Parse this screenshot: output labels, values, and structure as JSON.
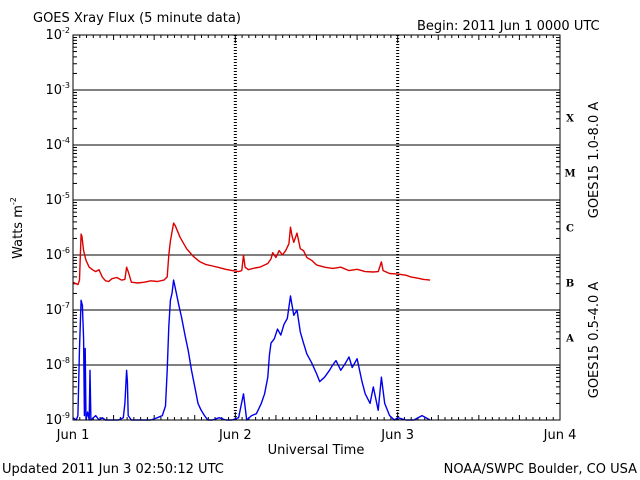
{
  "chart_data": {
    "type": "line",
    "title": "GOES Xray Flux (5 minute data)",
    "begin_label": "Begin:  2011 Jun 1 0000 UTC",
    "xlabel": "Universal Time",
    "ylabel": "Watts m",
    "ylabel_exponent": "-2",
    "y_scale": "log",
    "ylim": [
      1e-09,
      0.01
    ],
    "y_tick_base": "10",
    "y_tick_exponents": [
      "-2",
      "-3",
      "-4",
      "-5",
      "-6",
      "-7",
      "-8",
      "-9"
    ],
    "x_unit": "days since Jun 1 0000 UTC",
    "xlim": [
      0,
      3
    ],
    "x_tick_labels": [
      "Jun 1",
      "Jun 2",
      "Jun 3",
      "Jun 4"
    ],
    "flare_classes": [
      "X",
      "M",
      "C",
      "B",
      "A"
    ],
    "grid": true,
    "series": [
      {
        "name": "GOES15 1.0-8.0 A",
        "color": "#dd0000",
        "points": [
          [
            0.0,
            3.2e-07
          ],
          [
            0.02,
            3e-07
          ],
          [
            0.03,
            2.9e-07
          ],
          [
            0.04,
            3.5e-07
          ],
          [
            0.05,
            2.4e-06
          ],
          [
            0.055,
            2.2e-06
          ],
          [
            0.065,
            1.2e-06
          ],
          [
            0.08,
            8e-07
          ],
          [
            0.1,
            6e-07
          ],
          [
            0.12,
            5.4e-07
          ],
          [
            0.14,
            5e-07
          ],
          [
            0.16,
            5.4e-07
          ],
          [
            0.18,
            4e-07
          ],
          [
            0.2,
            3.4e-07
          ],
          [
            0.22,
            3.3e-07
          ],
          [
            0.24,
            3.7e-07
          ],
          [
            0.27,
            3.9e-07
          ],
          [
            0.3,
            3.5e-07
          ],
          [
            0.32,
            3.6e-07
          ],
          [
            0.33,
            6e-07
          ],
          [
            0.34,
            5e-07
          ],
          [
            0.36,
            3.2e-07
          ],
          [
            0.4,
            3.1e-07
          ],
          [
            0.44,
            3.2e-07
          ],
          [
            0.48,
            3.4e-07
          ],
          [
            0.52,
            3.3e-07
          ],
          [
            0.56,
            3.5e-07
          ],
          [
            0.58,
            4e-07
          ],
          [
            0.59,
            1e-06
          ],
          [
            0.6,
            1.8e-06
          ],
          [
            0.62,
            3.8e-06
          ],
          [
            0.63,
            3.4e-06
          ],
          [
            0.66,
            2.1e-06
          ],
          [
            0.7,
            1.3e-06
          ],
          [
            0.74,
            9.5e-07
          ],
          [
            0.78,
            7.6e-07
          ],
          [
            0.82,
            6.7e-07
          ],
          [
            0.86,
            6.3e-07
          ],
          [
            0.9,
            5.9e-07
          ],
          [
            0.94,
            5.5e-07
          ],
          [
            0.98,
            5.2e-07
          ],
          [
            1.02,
            5e-07
          ],
          [
            1.04,
            5.2e-07
          ],
          [
            1.05,
            1e-06
          ],
          [
            1.06,
            6e-07
          ],
          [
            1.08,
            5.4e-07
          ],
          [
            1.12,
            5.8e-07
          ],
          [
            1.15,
            6e-07
          ],
          [
            1.2,
            7e-07
          ],
          [
            1.22,
            8.5e-07
          ],
          [
            1.23,
            1.1e-06
          ],
          [
            1.25,
            9e-07
          ],
          [
            1.27,
            1.2e-06
          ],
          [
            1.29,
            1e-06
          ],
          [
            1.31,
            1.2e-06
          ],
          [
            1.33,
            1.6e-06
          ],
          [
            1.34,
            3.2e-06
          ],
          [
            1.35,
            2.2e-06
          ],
          [
            1.36,
            1.7e-06
          ],
          [
            1.38,
            2.5e-06
          ],
          [
            1.4,
            1.3e-06
          ],
          [
            1.42,
            1.2e-06
          ],
          [
            1.44,
            9e-07
          ],
          [
            1.47,
            8e-07
          ],
          [
            1.5,
            6.6e-07
          ],
          [
            1.55,
            6e-07
          ],
          [
            1.6,
            5.7e-07
          ],
          [
            1.65,
            6e-07
          ],
          [
            1.7,
            5.2e-07
          ],
          [
            1.75,
            5.5e-07
          ],
          [
            1.8,
            5e-07
          ],
          [
            1.85,
            4.9e-07
          ],
          [
            1.88,
            5e-07
          ],
          [
            1.9,
            7.5e-07
          ],
          [
            1.91,
            5.2e-07
          ],
          [
            1.95,
            4.6e-07
          ],
          [
            2.0,
            4.5e-07
          ],
          [
            2.05,
            4.3e-07
          ],
          [
            2.08,
            4e-07
          ],
          [
            2.12,
            3.8e-07
          ],
          [
            2.16,
            3.6e-07
          ],
          [
            2.2,
            3.5e-07
          ]
        ]
      },
      {
        "name": "GOES15 0.5-4.0 A",
        "color": "#0000ee",
        "points": [
          [
            0.0,
            1.1e-09
          ],
          [
            0.02,
            1e-09
          ],
          [
            0.03,
            1.2e-09
          ],
          [
            0.04,
            2e-08
          ],
          [
            0.05,
            1.5e-07
          ],
          [
            0.058,
            1.2e-07
          ],
          [
            0.065,
            3e-08
          ],
          [
            0.07,
            1.2e-09
          ],
          [
            0.075,
            2e-08
          ],
          [
            0.08,
            1e-09
          ],
          [
            0.09,
            1.4e-09
          ],
          [
            0.1,
            1e-09
          ],
          [
            0.105,
            8e-09
          ],
          [
            0.11,
            1e-09
          ],
          [
            0.14,
            1.2e-09
          ],
          [
            0.16,
            1e-09
          ],
          [
            0.18,
            1.1e-09
          ],
          [
            0.2,
            1e-09
          ],
          [
            0.24,
            1e-09
          ],
          [
            0.28,
            1e-09
          ],
          [
            0.31,
            1.1e-09
          ],
          [
            0.32,
            2e-09
          ],
          [
            0.33,
            8e-09
          ],
          [
            0.335,
            5e-09
          ],
          [
            0.34,
            1.2e-09
          ],
          [
            0.36,
            1e-09
          ],
          [
            0.4,
            1e-09
          ],
          [
            0.44,
            1e-09
          ],
          [
            0.48,
            1e-09
          ],
          [
            0.52,
            1.1e-09
          ],
          [
            0.55,
            1.2e-09
          ],
          [
            0.57,
            1.8e-09
          ],
          [
            0.58,
            8e-09
          ],
          [
            0.59,
            5e-08
          ],
          [
            0.6,
            1.5e-07
          ],
          [
            0.61,
            2e-07
          ],
          [
            0.62,
            3.5e-07
          ],
          [
            0.63,
            2.5e-07
          ],
          [
            0.65,
            1.3e-07
          ],
          [
            0.67,
            7e-08
          ],
          [
            0.69,
            3.5e-08
          ],
          [
            0.71,
            1.8e-08
          ],
          [
            0.73,
            8e-09
          ],
          [
            0.75,
            4e-09
          ],
          [
            0.77,
            2e-09
          ],
          [
            0.79,
            1.5e-09
          ],
          [
            0.81,
            1.2e-09
          ],
          [
            0.83,
            1e-09
          ],
          [
            0.86,
            1e-09
          ],
          [
            0.9,
            1.1e-09
          ],
          [
            0.94,
            1e-09
          ],
          [
            0.98,
            1e-09
          ],
          [
            1.02,
            1.1e-09
          ],
          [
            1.05,
            3e-09
          ],
          [
            1.07,
            1e-09
          ],
          [
            1.1,
            1.2e-09
          ],
          [
            1.13,
            1.3e-09
          ],
          [
            1.16,
            2e-09
          ],
          [
            1.18,
            3e-09
          ],
          [
            1.2,
            6e-09
          ],
          [
            1.21,
            1.5e-08
          ],
          [
            1.22,
            2.5e-08
          ],
          [
            1.24,
            3e-08
          ],
          [
            1.26,
            4.5e-08
          ],
          [
            1.28,
            3.5e-08
          ],
          [
            1.3,
            5.5e-08
          ],
          [
            1.32,
            7e-08
          ],
          [
            1.34,
            1.8e-07
          ],
          [
            1.35,
            1.2e-07
          ],
          [
            1.36,
            8e-08
          ],
          [
            1.38,
            1e-07
          ],
          [
            1.4,
            4e-08
          ],
          [
            1.42,
            2.5e-08
          ],
          [
            1.44,
            1.6e-08
          ],
          [
            1.47,
            1.1e-08
          ],
          [
            1.5,
            7e-09
          ],
          [
            1.52,
            5e-09
          ],
          [
            1.55,
            6e-09
          ],
          [
            1.58,
            8e-09
          ],
          [
            1.6,
            1e-08
          ],
          [
            1.62,
            1.2e-08
          ],
          [
            1.65,
            8e-09
          ],
          [
            1.68,
            1.1e-08
          ],
          [
            1.7,
            1.4e-08
          ],
          [
            1.72,
            9e-09
          ],
          [
            1.75,
            1.3e-08
          ],
          [
            1.78,
            5e-09
          ],
          [
            1.8,
            3e-09
          ],
          [
            1.83,
            2e-09
          ],
          [
            1.85,
            4e-09
          ],
          [
            1.88,
            1.5e-09
          ],
          [
            1.9,
            6e-09
          ],
          [
            1.92,
            2e-09
          ],
          [
            1.95,
            1.2e-09
          ],
          [
            1.98,
            1e-09
          ],
          [
            2.0,
            1.1e-09
          ],
          [
            2.05,
            1e-09
          ],
          [
            2.1,
            1e-09
          ],
          [
            2.15,
            1.2e-09
          ],
          [
            2.2,
            1e-09
          ]
        ]
      }
    ]
  },
  "footer": {
    "updated": "Updated 2011 Jun  3 02:50:12 UTC",
    "credit": "NOAA/SWPC Boulder, CO USA"
  }
}
